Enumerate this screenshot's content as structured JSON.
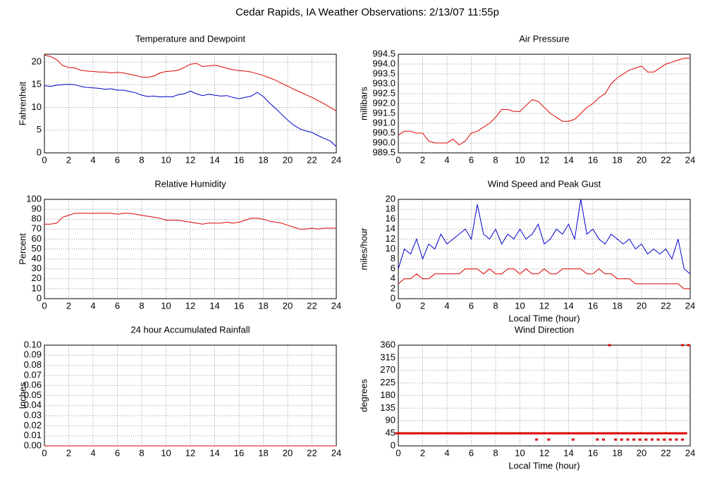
{
  "title": "Cedar Rapids, IA Weather Observations: 2/13/07 11:55p",
  "chart_data": [
    {
      "type": "line",
      "title": "Temperature and Dewpoint",
      "ylabel": "Fahrenheit",
      "xlim": [
        0,
        24
      ],
      "xticks": [
        0,
        2,
        4,
        6,
        8,
        10,
        12,
        14,
        16,
        18,
        20,
        22,
        24
      ],
      "ylim": [
        0,
        21.7
      ],
      "yticks": [
        0,
        5,
        10,
        15,
        20
      ],
      "grid": true,
      "x": [
        0,
        0.5,
        1,
        1.5,
        2,
        2.5,
        3,
        3.5,
        4,
        4.5,
        5,
        5.5,
        6,
        6.5,
        7,
        7.5,
        8,
        8.5,
        9,
        9.5,
        10,
        10.5,
        11,
        11.5,
        12,
        12.5,
        13,
        13.5,
        14,
        14.5,
        15,
        15.5,
        16,
        16.5,
        17,
        17.5,
        18,
        18.5,
        19,
        19.5,
        20,
        20.5,
        21,
        21.5,
        22,
        22.5,
        23,
        23.5,
        24
      ],
      "series": [
        {
          "color": "#dd0000",
          "values": [
            21.5,
            21.2,
            20.5,
            19.2,
            18.8,
            18.7,
            18.2,
            18.0,
            17.9,
            17.8,
            17.8,
            17.6,
            17.7,
            17.6,
            17.3,
            17.0,
            16.7,
            16.6,
            16.9,
            17.6,
            17.9,
            18.0,
            18.2,
            18.8,
            19.5,
            19.7,
            19.0,
            19.1,
            19.3,
            19.0,
            18.6,
            18.3,
            18.1,
            18.0,
            17.8,
            17.4,
            17.0,
            16.5,
            16.0,
            15.3,
            14.7,
            14.0,
            13.4,
            12.8,
            12.2,
            11.5,
            10.8,
            10.0,
            9.2
          ]
        },
        {
          "color": "#0000cc",
          "values": [
            14.8,
            14.6,
            14.9,
            15.0,
            15.1,
            15.0,
            14.6,
            14.4,
            14.3,
            14.2,
            14.0,
            14.1,
            13.8,
            13.8,
            13.5,
            13.2,
            12.7,
            12.4,
            12.5,
            12.3,
            12.4,
            12.3,
            12.8,
            13.0,
            13.6,
            13.0,
            12.6,
            12.9,
            12.7,
            12.5,
            12.6,
            12.2,
            11.9,
            12.2,
            12.5,
            13.3,
            12.4,
            11.0,
            9.8,
            8.5,
            7.2,
            6.1,
            5.3,
            4.8,
            4.5,
            3.8,
            3.2,
            2.6,
            1.4
          ]
        }
      ]
    },
    {
      "type": "line",
      "title": "Air Pressure",
      "ylabel": "millibars",
      "xlim": [
        0,
        24
      ],
      "xticks": [
        0,
        2,
        4,
        6,
        8,
        10,
        12,
        14,
        16,
        18,
        20,
        22,
        24
      ],
      "ylim": [
        989.5,
        994.5
      ],
      "yticks": [
        989.5,
        {
          "value": 990,
          "label": "990.0"
        },
        990.5,
        {
          "value": 991,
          "label": "991.0"
        },
        991.5,
        {
          "value": 992,
          "label": "992.0"
        },
        992.5,
        {
          "value": 993,
          "label": "993.0"
        },
        993.5,
        {
          "value": 994,
          "label": "994.0"
        },
        994.5
      ],
      "grid": true,
      "x": [
        0,
        0.5,
        1,
        1.5,
        2,
        2.5,
        3,
        3.5,
        4,
        4.5,
        5,
        5.5,
        6,
        6.5,
        7,
        7.5,
        8,
        8.5,
        9,
        9.5,
        10,
        10.5,
        11,
        11.5,
        12,
        12.5,
        13,
        13.5,
        14,
        14.5,
        15,
        15.5,
        16,
        16.5,
        17,
        17.5,
        18,
        18.5,
        19,
        19.5,
        20,
        20.5,
        21,
        21.5,
        22,
        22.5,
        23,
        23.5,
        24
      ],
      "series": [
        {
          "color": "#dd0000",
          "values": [
            990.4,
            990.6,
            990.6,
            990.5,
            990.5,
            990.1,
            990.0,
            990.0,
            990.0,
            990.2,
            989.9,
            990.1,
            990.5,
            990.6,
            990.8,
            991.0,
            991.3,
            991.7,
            991.7,
            991.6,
            991.6,
            991.9,
            992.2,
            992.1,
            991.8,
            991.5,
            991.3,
            991.1,
            991.1,
            991.2,
            991.5,
            991.8,
            992.0,
            992.3,
            992.5,
            993.0,
            993.3,
            993.5,
            993.7,
            993.8,
            993.9,
            993.6,
            993.6,
            993.8,
            994.0,
            994.1,
            994.2,
            994.3,
            994.3
          ]
        }
      ]
    },
    {
      "type": "line",
      "title": "Relative Humidity",
      "ylabel": "Percent",
      "xlim": [
        0,
        24
      ],
      "xticks": [
        0,
        2,
        4,
        6,
        8,
        10,
        12,
        14,
        16,
        18,
        20,
        22,
        24
      ],
      "ylim": [
        0,
        100
      ],
      "yticks": [
        0,
        10,
        20,
        30,
        40,
        50,
        60,
        70,
        80,
        90,
        100
      ],
      "grid": true,
      "x": [
        0,
        0.5,
        1,
        1.5,
        2,
        2.5,
        3,
        3.5,
        4,
        4.5,
        5,
        5.5,
        6,
        6.5,
        7,
        7.5,
        8,
        8.5,
        9,
        9.5,
        10,
        10.5,
        11,
        11.5,
        12,
        12.5,
        13,
        13.5,
        14,
        14.5,
        15,
        15.5,
        16,
        16.5,
        17,
        17.5,
        18,
        18.5,
        19,
        19.5,
        20,
        20.5,
        21,
        21.5,
        22,
        22.5,
        23,
        23.5,
        24
      ],
      "series": [
        {
          "color": "#dd0000",
          "values": [
            75,
            75,
            76,
            82,
            84,
            86,
            86,
            86,
            86,
            86,
            86,
            86,
            85,
            86,
            86,
            85,
            84,
            83,
            82,
            81,
            79,
            79,
            79,
            78,
            77,
            76,
            75,
            76,
            76,
            76,
            77,
            76,
            77,
            79,
            81,
            81,
            80,
            78,
            77,
            76,
            74,
            72,
            70,
            70,
            71,
            70,
            71,
            71,
            71
          ]
        }
      ]
    },
    {
      "type": "line",
      "title": "Wind Speed and Peak Gust",
      "ylabel": "miles/hour",
      "xlabel": "Local Time (hour)",
      "xlim": [
        0,
        24
      ],
      "xticks": [
        0,
        2,
        4,
        6,
        8,
        10,
        12,
        14,
        16,
        18,
        20,
        22,
        24
      ],
      "ylim": [
        0,
        20
      ],
      "yticks": [
        0,
        2,
        4,
        6,
        8,
        10,
        12,
        14,
        16,
        18,
        20
      ],
      "grid": true,
      "x": [
        0,
        0.5,
        1,
        1.5,
        2,
        2.5,
        3,
        3.5,
        4,
        4.5,
        5,
        5.5,
        6,
        6.5,
        7,
        7.5,
        8,
        8.5,
        9,
        9.5,
        10,
        10.5,
        11,
        11.5,
        12,
        12.5,
        13,
        13.5,
        14,
        14.5,
        15,
        15.5,
        16,
        16.5,
        17,
        17.5,
        18,
        18.5,
        19,
        19.5,
        20,
        20.5,
        21,
        21.5,
        22,
        22.5,
        23,
        23.5,
        24
      ],
      "series": [
        {
          "color": "#0000cc",
          "values": [
            6,
            10,
            9,
            12,
            8,
            11,
            10,
            13,
            11,
            12,
            13,
            14,
            12,
            19,
            13,
            12,
            14,
            11,
            13,
            12,
            14,
            12,
            13,
            15,
            11,
            12,
            14,
            13,
            15,
            12,
            20,
            13,
            14,
            12,
            11,
            13,
            12,
            11,
            12,
            10,
            11,
            9,
            10,
            9,
            10,
            8,
            12,
            6,
            5
          ]
        },
        {
          "color": "#dd0000",
          "values": [
            3,
            4,
            4,
            5,
            4,
            4,
            5,
            5,
            5,
            5,
            5,
            6,
            6,
            6,
            5,
            6,
            5,
            5,
            6,
            6,
            5,
            6,
            5,
            5,
            6,
            5,
            5,
            6,
            6,
            6,
            6,
            5,
            5,
            6,
            5,
            5,
            4,
            4,
            4,
            3,
            3,
            3,
            3,
            3,
            3,
            3,
            3,
            2,
            2
          ]
        }
      ]
    },
    {
      "type": "line",
      "title": "24 hour Accumulated Rainfall",
      "ylabel": "Inches",
      "xlim": [
        0,
        24
      ],
      "xticks": [
        0,
        2,
        4,
        6,
        8,
        10,
        12,
        14,
        16,
        18,
        20,
        22,
        24
      ],
      "ylim": [
        0,
        0.1
      ],
      "yticks": [
        {
          "value": 0,
          "label": "0.00"
        },
        0.01,
        0.02,
        0.03,
        0.04,
        0.05,
        0.06,
        0.07,
        0.08,
        0.09,
        {
          "value": 0.1,
          "label": "0.10"
        }
      ],
      "grid": true,
      "x": [
        0,
        0.5,
        1,
        1.5,
        2,
        2.5,
        3,
        3.5,
        4,
        4.5,
        5,
        5.5,
        6,
        6.5,
        7,
        7.5,
        8,
        8.5,
        9,
        9.5,
        10,
        10.5,
        11,
        11.5,
        12,
        12.5,
        13,
        13.5,
        14,
        14.5,
        15,
        15.5,
        16,
        16.5,
        17,
        17.5,
        18,
        18.5,
        19,
        19.5,
        20,
        20.5,
        21,
        21.5,
        22,
        22.5,
        23,
        23.5,
        24
      ],
      "series": [
        {
          "color": "#dd0000",
          "values": [
            0,
            0,
            0,
            0,
            0,
            0,
            0,
            0,
            0,
            0,
            0,
            0,
            0,
            0,
            0,
            0,
            0,
            0,
            0,
            0,
            0,
            0,
            0,
            0,
            0,
            0,
            0,
            0,
            0,
            0,
            0,
            0,
            0,
            0,
            0,
            0,
            0,
            0,
            0,
            0,
            0,
            0,
            0,
            0,
            0,
            0,
            0,
            0,
            0
          ]
        }
      ]
    },
    {
      "type": "scatter",
      "title": "Wind Direction",
      "ylabel": "degrees",
      "xlabel": "Local Time (hour)",
      "xlim": [
        0,
        24
      ],
      "xticks": [
        0,
        2,
        4,
        6,
        8,
        10,
        12,
        14,
        16,
        18,
        20,
        22,
        24
      ],
      "ylim": [
        0,
        360
      ],
      "yticks": [
        0,
        45,
        90,
        135,
        180,
        225,
        270,
        315,
        360
      ],
      "grid": true,
      "series": [
        {
          "color": "#dd0000",
          "x": [
            0,
            0.5,
            1,
            1.5,
            2,
            2.5,
            3,
            3.5,
            4,
            4.5,
            5,
            5.5,
            6,
            6.5,
            7,
            7.5,
            8,
            8.5,
            9,
            9.5,
            10,
            10.5,
            11,
            11.5,
            12,
            12.5,
            13,
            13.5,
            14,
            14.5,
            15,
            15.5,
            16,
            16.5,
            17,
            17.5,
            18,
            18.5,
            19,
            19.5,
            20,
            20.5,
            21,
            21.5,
            22,
            22.5,
            23,
            23.5
          ],
          "values": [
            45,
            45,
            45,
            45,
            45,
            45,
            45,
            45,
            45,
            45,
            45,
            45,
            45,
            45,
            45,
            45,
            45,
            45,
            45,
            45,
            45,
            45,
            45,
            45,
            45,
            45,
            45,
            45,
            45,
            45,
            45,
            45,
            45,
            45,
            45,
            45,
            45,
            45,
            45,
            45,
            45,
            45,
            45,
            45,
            45,
            45,
            45,
            45
          ]
        },
        {
          "color": "#dd0000",
          "x": [
            11.5,
            12.5,
            14.5,
            16.5,
            17,
            18,
            18.5,
            19,
            19.5,
            20,
            20.5,
            21,
            21.5,
            22,
            22.5,
            23,
            23.5
          ],
          "values": [
            22.5,
            22.5,
            22.5,
            22.5,
            22.5,
            22.5,
            22.5,
            22.5,
            22.5,
            22.5,
            22.5,
            22.5,
            22.5,
            22.5,
            22.5,
            22.5,
            22.5
          ]
        },
        {
          "color": "#dd0000",
          "x": [
            17.5,
            23.5,
            24
          ],
          "values": [
            360,
            360,
            360
          ]
        }
      ]
    }
  ]
}
